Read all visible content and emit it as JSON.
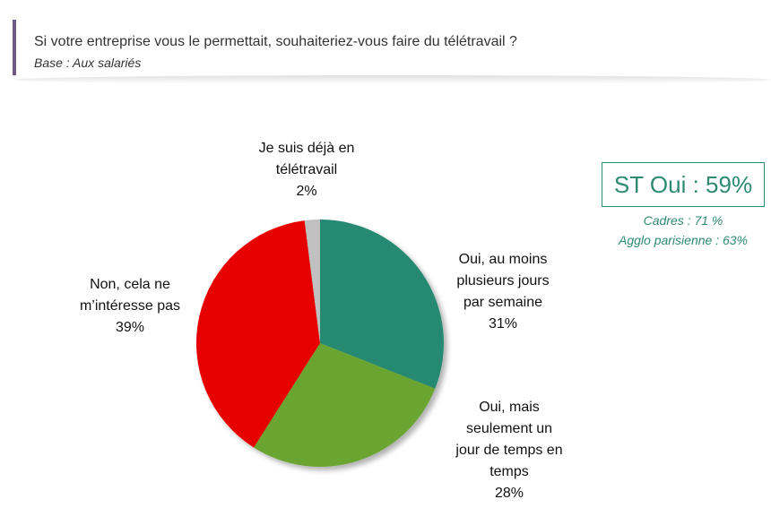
{
  "header": {
    "title": "Si votre entreprise vous le permettait, souhaiteriez-vous faire du télétravail ?",
    "subtitle": "Base : Aux salariés"
  },
  "summary": {
    "st_oui": "ST Oui : 59%",
    "cadres": "Cadres : 71 %",
    "agglo": "Agglo parisienne : 63%"
  },
  "labels": {
    "deja": [
      "Je suis déjà en",
      "télétravail",
      "2%"
    ],
    "plusieurs": [
      "Oui, au moins",
      "plusieurs jours",
      "par semaine",
      "31%"
    ],
    "unjour": [
      "Oui, mais",
      "seulement un",
      "jour de temps en",
      "temps",
      "28%"
    ],
    "non": [
      "Non, cela ne",
      "m’intéresse pas",
      "39%"
    ]
  },
  "chart_data": {
    "type": "pie",
    "title": "Si votre entreprise vous le permettait, souhaiteriez-vous faire du télétravail ?",
    "subtitle": "Base : Aux salariés",
    "categories": [
      "Oui, au moins plusieurs jours par semaine",
      "Oui, mais seulement un jour de temps en temps",
      "Non, cela ne m’intéresse pas",
      "Je suis déjà en télétravail"
    ],
    "values": [
      31,
      28,
      39,
      2
    ],
    "colors": [
      "#268a72",
      "#6aa531",
      "#e60000",
      "#c0c0c0"
    ],
    "annotations": [
      "ST Oui : 59%",
      "Cadres : 71 %",
      "Agglo parisienne : 63%"
    ]
  }
}
